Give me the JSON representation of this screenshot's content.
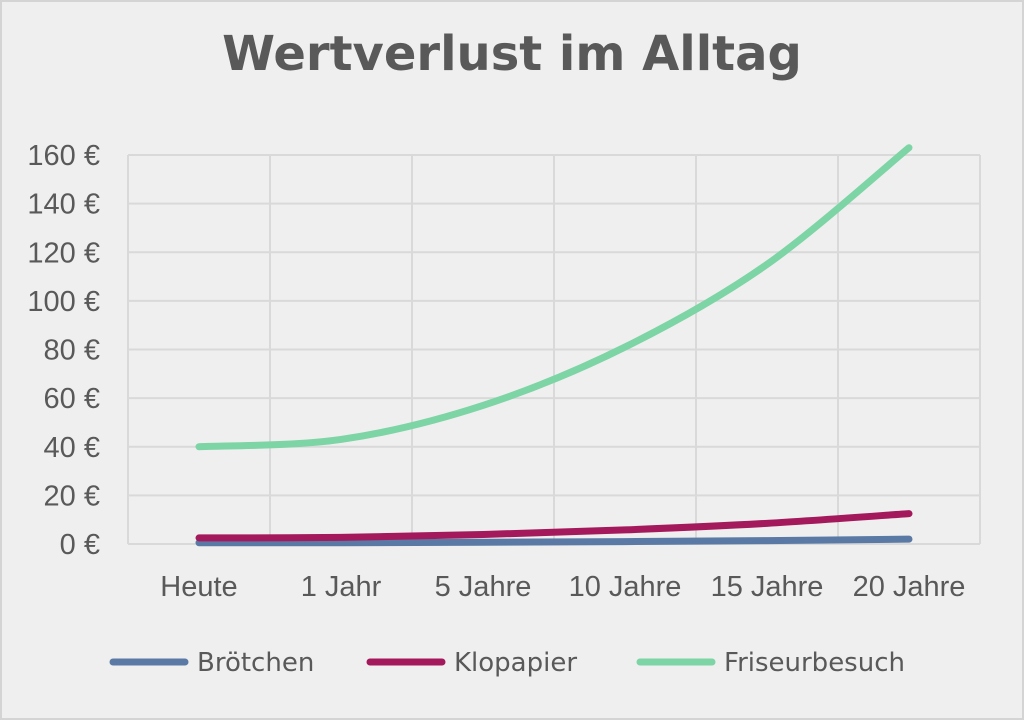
{
  "chart_data": {
    "type": "line",
    "title": "Wertverlust im Alltag",
    "categories": [
      "Heute",
      "1 Jahr",
      "5 Jahre",
      "10 Jahre",
      "15 Jahre",
      "20 Jahre"
    ],
    "y_ticks": [
      "0 €",
      "20 €",
      "40 €",
      "60 €",
      "80 €",
      "100 €",
      "120 €",
      "140 €",
      "160 €"
    ],
    "ylim": [
      0,
      160
    ],
    "y_step": 20,
    "grid": true,
    "legend_position": "bottom",
    "series": [
      {
        "name": "Brötchen",
        "color": "#5a7aa5",
        "values": [
          0.5,
          0.52,
          0.7,
          1.0,
          1.4,
          2.0
        ]
      },
      {
        "name": "Klopapier",
        "color": "#a3195b",
        "values": [
          2.5,
          2.7,
          3.9,
          5.8,
          8.5,
          12.5
        ]
      },
      {
        "name": "Friseurbesuch",
        "color": "#7dd4a5",
        "values": [
          40,
          43,
          57,
          81,
          115,
          163
        ]
      }
    ]
  }
}
